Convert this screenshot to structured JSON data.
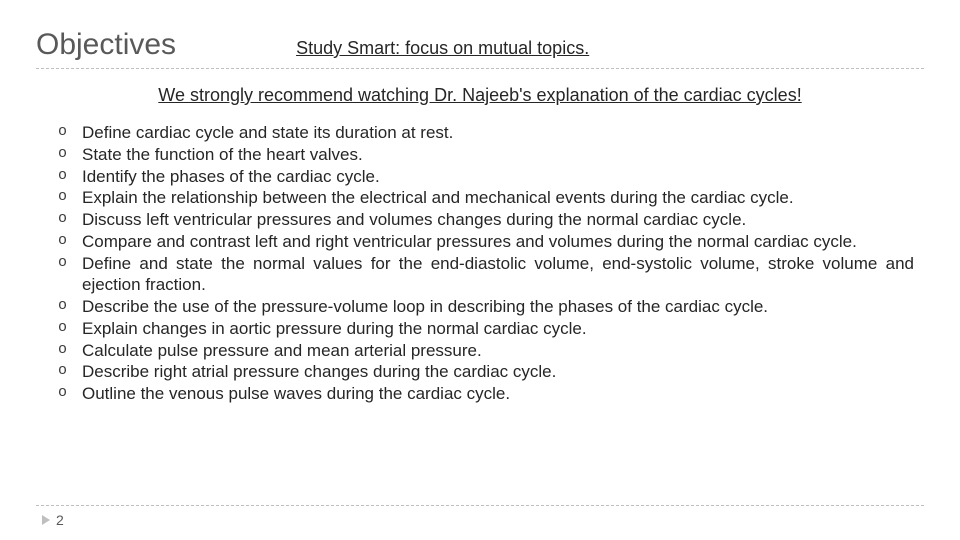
{
  "header": {
    "title": "Objectives",
    "subtitle": "Study Smart: focus on mutual topics."
  },
  "recommend": "We strongly recommend watching Dr. Najeeb's explanation of the cardiac cycles!",
  "objectives": [
    "Define cardiac cycle and state its duration at rest.",
    "State the function of the heart valves.",
    "Identify the phases of the cardiac cycle.",
    "Explain the relationship between the electrical and mechanical events during the cardiac cycle.",
    "Discuss left ventricular pressures and volumes changes during the normal cardiac cycle.",
    "Compare and contrast left and right ventricular pressures and volumes during the normal cardiac cycle.",
    "Define and state the normal values for the end-diastolic volume, end-systolic volume, stroke volume and ejection fraction.",
    "Describe the use of the pressure-volume loop in describing the phases of the cardiac cycle.",
    "Explain changes in aortic pressure during the normal cardiac cycle.",
    "Calculate pulse pressure and mean arterial pressure.",
    "Describe right atrial pressure changes during the cardiac cycle.",
    "Outline the venous pulse waves during the cardiac cycle."
  ],
  "page": "2",
  "colors": {
    "background": "#ffffff",
    "title_color": "#595959",
    "text_color": "#262626",
    "divider_color": "#bfbfbf",
    "triangle_color": "#bfbfbf"
  },
  "typography": {
    "title_fontsize": 30,
    "subtitle_fontsize": 18,
    "body_fontsize": 17,
    "pagenum_fontsize": 14,
    "font_family": "Arial"
  }
}
